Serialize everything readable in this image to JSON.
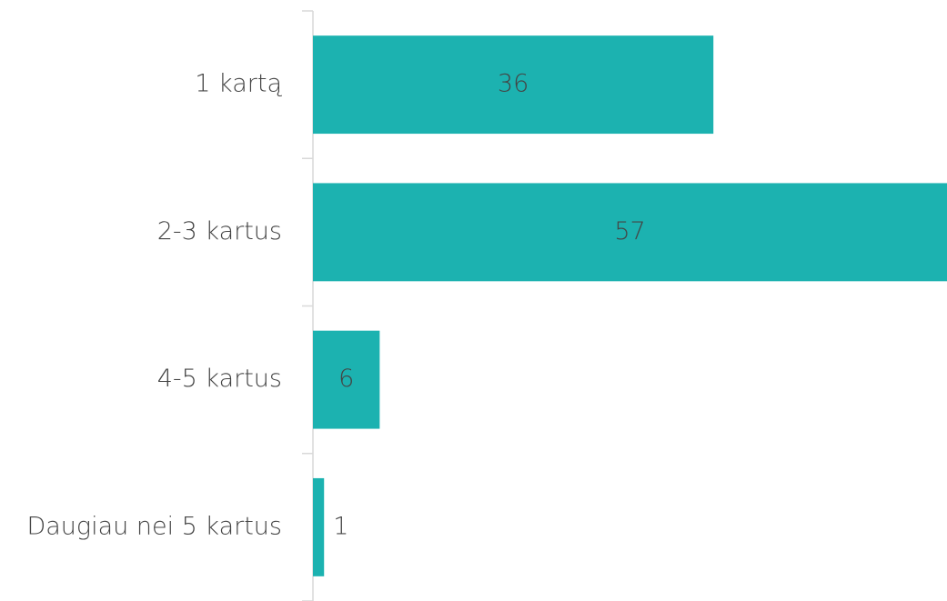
{
  "chart_data": {
    "type": "hbar",
    "categories": [
      "1 kartą",
      "2-3 kartus",
      "4-5 kartus",
      "Daugiau nei 5 kartus"
    ],
    "values": [
      36,
      57,
      6,
      1
    ],
    "color": "#1cb2b0",
    "xlim": [
      0,
      57
    ],
    "data_labels": true
  }
}
